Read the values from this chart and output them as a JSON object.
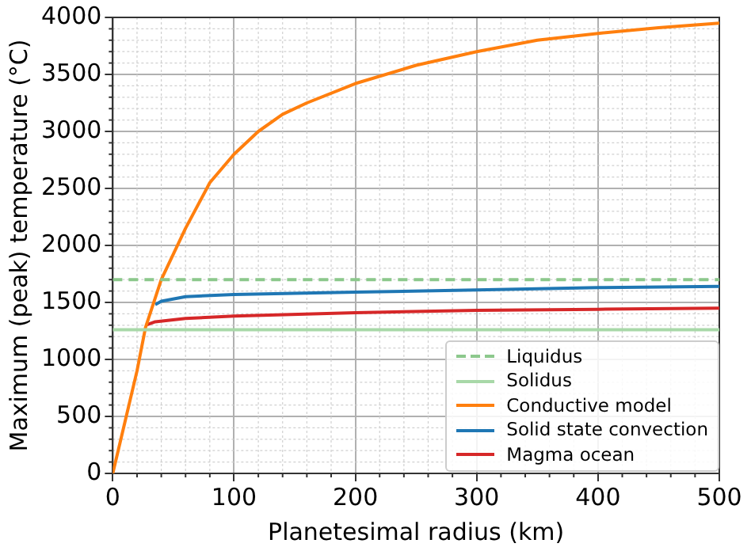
{
  "chart_data": {
    "type": "line",
    "xlabel": "Planetesimal radius (km)",
    "ylabel": "Maximum (peak) temperature (°C)",
    "xlim": [
      0,
      500
    ],
    "xticks": [
      0,
      100,
      200,
      300,
      400,
      500
    ],
    "ylim": [
      0,
      4000
    ],
    "yticks": [
      0,
      500,
      1000,
      1500,
      2000,
      2500,
      3000,
      3500,
      4000
    ],
    "grid": true,
    "legend": "bottom right",
    "marker": "none",
    "series": [
      {
        "name": "Liquidus",
        "color": "#8cc88c",
        "line_style": "dashed",
        "x": [
          0,
          500
        ],
        "values": [
          1700,
          1700
        ]
      },
      {
        "name": "Solidus",
        "color": "#a8d8a8",
        "line_style": "solid",
        "x": [
          0,
          500
        ],
        "values": [
          1260,
          1260
        ]
      },
      {
        "name": "Conductive model",
        "color": "#ff7f0e",
        "line_style": "solid",
        "x": [
          0,
          10,
          20,
          27,
          40,
          60,
          80,
          100,
          120,
          140,
          160,
          200,
          250,
          300,
          350,
          400,
          450,
          500
        ],
        "values": [
          0,
          450,
          900,
          1280,
          1700,
          2150,
          2550,
          2800,
          3000,
          3150,
          3250,
          3420,
          3580,
          3700,
          3800,
          3860,
          3910,
          3950
        ]
      },
      {
        "name": "Solid state convection",
        "color": "#1f77b4",
        "line_style": "solid",
        "x": [
          35,
          40,
          60,
          100,
          200,
          300,
          400,
          500
        ],
        "values": [
          1480,
          1510,
          1550,
          1570,
          1590,
          1610,
          1630,
          1640
        ]
      },
      {
        "name": "Magma ocean",
        "color": "#d62728",
        "line_style": "solid",
        "x": [
          27,
          35,
          60,
          100,
          200,
          300,
          400,
          500
        ],
        "values": [
          1300,
          1330,
          1360,
          1380,
          1410,
          1430,
          1440,
          1450
        ]
      }
    ]
  }
}
